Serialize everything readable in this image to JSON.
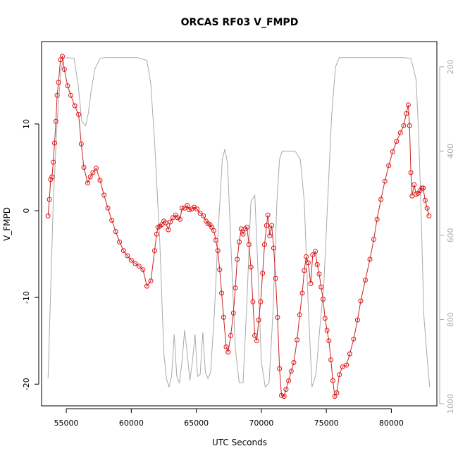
{
  "chart_data": {
    "type": "line",
    "title": "ORCAS RF03 V_FMPD",
    "xlabel": "UTC Seconds",
    "ylabel": "V_FMPD",
    "xlim": [
      53100,
      83500
    ],
    "ylim": [
      -22.5,
      19.5
    ],
    "x_ticks": [
      55000,
      60000,
      65000,
      70000,
      75000,
      80000
    ],
    "y_ticks": [
      -20,
      -10,
      0,
      10
    ],
    "right_axis": {
      "range": [
        1005,
        140
      ],
      "reversed": true,
      "ticks": [
        200,
        400,
        600,
        800,
        1000
      ],
      "color": "#aaaaaa"
    },
    "colors": {
      "series": "#e01010",
      "secondary": "#aaaaaa"
    },
    "series": [
      {
        "axis": "left",
        "points": [
          [
            53600,
            -0.6
          ],
          [
            53700,
            1.3
          ],
          [
            53800,
            3.6
          ],
          [
            53900,
            3.9
          ],
          [
            54000,
            5.6
          ],
          [
            54100,
            7.8
          ],
          [
            54200,
            10.3
          ],
          [
            54300,
            13.3
          ],
          [
            54400,
            14.8
          ],
          [
            54550,
            17.4
          ],
          [
            54700,
            17.8
          ],
          [
            54850,
            16.3
          ],
          [
            55100,
            14.4
          ],
          [
            55350,
            13.3
          ],
          [
            55650,
            12.1
          ],
          [
            55950,
            11.1
          ],
          [
            56150,
            7.7
          ],
          [
            56350,
            5.0
          ],
          [
            56650,
            3.2
          ],
          [
            56850,
            3.9
          ],
          [
            57050,
            4.4
          ],
          [
            57300,
            4.9
          ],
          [
            57600,
            3.5
          ],
          [
            57900,
            1.8
          ],
          [
            58200,
            0.3
          ],
          [
            58500,
            -1.1
          ],
          [
            58800,
            -2.4
          ],
          [
            59100,
            -3.6
          ],
          [
            59400,
            -4.6
          ],
          [
            59700,
            -5.2
          ],
          [
            60000,
            -5.7
          ],
          [
            60300,
            -6.1
          ],
          [
            60600,
            -6.4
          ],
          [
            60900,
            -6.8
          ],
          [
            61200,
            -8.7
          ],
          [
            61500,
            -8.1
          ],
          [
            61800,
            -4.6
          ],
          [
            61950,
            -2.7
          ],
          [
            62050,
            -1.9
          ],
          [
            62200,
            -1.8
          ],
          [
            62350,
            -1.6
          ],
          [
            62500,
            -1.2
          ],
          [
            62650,
            -1.4
          ],
          [
            62850,
            -2.2
          ],
          [
            63000,
            -1.3
          ],
          [
            63200,
            -0.8
          ],
          [
            63400,
            -0.5
          ],
          [
            63550,
            -0.8
          ],
          [
            63750,
            -1.0
          ],
          [
            63900,
            0.3
          ],
          [
            64100,
            0.3
          ],
          [
            64300,
            0.6
          ],
          [
            64450,
            0.1
          ],
          [
            64650,
            0.2
          ],
          [
            64850,
            0.4
          ],
          [
            65050,
            0.2
          ],
          [
            65300,
            -0.3
          ],
          [
            65550,
            -0.6
          ],
          [
            65750,
            -1.2
          ],
          [
            65900,
            -1.5
          ],
          [
            66050,
            -1.6
          ],
          [
            66200,
            -1.9
          ],
          [
            66350,
            -2.3
          ],
          [
            66500,
            -3.4
          ],
          [
            66650,
            -4.6
          ],
          [
            66800,
            -6.8
          ],
          [
            66950,
            -9.5
          ],
          [
            67100,
            -12.3
          ],
          [
            67300,
            -15.7
          ],
          [
            67450,
            -16.3
          ],
          [
            67650,
            -14.4
          ],
          [
            67850,
            -11.8
          ],
          [
            68000,
            -8.9
          ],
          [
            68150,
            -5.6
          ],
          [
            68300,
            -3.6
          ],
          [
            68450,
            -2.1
          ],
          [
            68600,
            -2.7
          ],
          [
            68750,
            -2.1
          ],
          [
            68900,
            -1.9
          ],
          [
            69050,
            -3.9
          ],
          [
            69200,
            -6.5
          ],
          [
            69350,
            -10.5
          ],
          [
            69500,
            -14.4
          ],
          [
            69650,
            -15.0
          ],
          [
            69800,
            -12.6
          ],
          [
            69950,
            -10.5
          ],
          [
            70100,
            -7.2
          ],
          [
            70250,
            -3.9
          ],
          [
            70400,
            -1.7
          ],
          [
            70500,
            -0.5
          ],
          [
            70650,
            -2.9
          ],
          [
            70800,
            -1.7
          ],
          [
            70950,
            -4.3
          ],
          [
            71100,
            -7.8
          ],
          [
            71250,
            -12.3
          ],
          [
            71400,
            -18.2
          ],
          [
            71550,
            -21.3
          ],
          [
            71750,
            -21.4
          ],
          [
            71900,
            -20.6
          ],
          [
            72100,
            -19.6
          ],
          [
            72300,
            -18.5
          ],
          [
            72500,
            -17.5
          ],
          [
            72750,
            -14.9
          ],
          [
            72950,
            -12.0
          ],
          [
            73150,
            -9.5
          ],
          [
            73300,
            -6.9
          ],
          [
            73450,
            -5.3
          ],
          [
            73600,
            -6.0
          ],
          [
            73800,
            -8.4
          ],
          [
            73950,
            -5.1
          ],
          [
            74150,
            -4.7
          ],
          [
            74300,
            -6.2
          ],
          [
            74450,
            -7.3
          ],
          [
            74600,
            -8.8
          ],
          [
            74750,
            -10.2
          ],
          [
            74900,
            -12.4
          ],
          [
            75050,
            -13.8
          ],
          [
            75200,
            -15.0
          ],
          [
            75350,
            -17.2
          ],
          [
            75500,
            -19.6
          ],
          [
            75650,
            -21.4
          ],
          [
            75800,
            -21.0
          ],
          [
            76000,
            -18.9
          ],
          [
            76250,
            -18.0
          ],
          [
            76550,
            -17.8
          ],
          [
            76800,
            -16.5
          ],
          [
            77100,
            -14.8
          ],
          [
            77400,
            -12.6
          ],
          [
            77650,
            -10.4
          ],
          [
            78000,
            -8.0
          ],
          [
            78350,
            -5.6
          ],
          [
            78650,
            -3.3
          ],
          [
            78900,
            -1.0
          ],
          [
            79200,
            1.3
          ],
          [
            79500,
            3.4
          ],
          [
            79800,
            5.2
          ],
          [
            80100,
            6.8
          ],
          [
            80400,
            8.0
          ],
          [
            80700,
            9.0
          ],
          [
            80950,
            9.8
          ],
          [
            81150,
            11.2
          ],
          [
            81300,
            12.2
          ],
          [
            81400,
            9.8
          ],
          [
            81500,
            4.4
          ],
          [
            81600,
            1.7
          ],
          [
            81750,
            3.0
          ],
          [
            81900,
            1.9
          ],
          [
            82050,
            2.0
          ],
          [
            82200,
            2.3
          ],
          [
            82350,
            2.6
          ],
          [
            82450,
            2.6
          ],
          [
            82600,
            1.2
          ],
          [
            82750,
            0.3
          ],
          [
            82900,
            -0.6
          ]
        ]
      },
      {
        "axis": "right",
        "points": [
          [
            53600,
            940
          ],
          [
            54000,
            520
          ],
          [
            54300,
            330
          ],
          [
            54600,
            205
          ],
          [
            54800,
            180
          ],
          [
            55000,
            178
          ],
          [
            55600,
            180
          ],
          [
            55900,
            240
          ],
          [
            56200,
            330
          ],
          [
            56500,
            340
          ],
          [
            56700,
            310
          ],
          [
            56900,
            260
          ],
          [
            57200,
            205
          ],
          [
            57600,
            180
          ],
          [
            58000,
            178
          ],
          [
            59500,
            178
          ],
          [
            60500,
            178
          ],
          [
            61200,
            185
          ],
          [
            61500,
            240
          ],
          [
            61800,
            380
          ],
          [
            62200,
            620
          ],
          [
            62500,
            880
          ],
          [
            62700,
            940
          ],
          [
            62900,
            960
          ],
          [
            63100,
            935
          ],
          [
            63300,
            835
          ],
          [
            63500,
            935
          ],
          [
            63700,
            950
          ],
          [
            63900,
            900
          ],
          [
            64100,
            825
          ],
          [
            64300,
            880
          ],
          [
            64500,
            945
          ],
          [
            64700,
            900
          ],
          [
            64900,
            835
          ],
          [
            65100,
            935
          ],
          [
            65300,
            930
          ],
          [
            65500,
            830
          ],
          [
            65700,
            925
          ],
          [
            65900,
            940
          ],
          [
            66100,
            925
          ],
          [
            66400,
            780
          ],
          [
            66700,
            580
          ],
          [
            67000,
            420
          ],
          [
            67200,
            395
          ],
          [
            67400,
            430
          ],
          [
            67700,
            650
          ],
          [
            68000,
            870
          ],
          [
            68300,
            950
          ],
          [
            68600,
            950
          ],
          [
            68900,
            750
          ],
          [
            69200,
            520
          ],
          [
            69500,
            505
          ],
          [
            69700,
            650
          ],
          [
            70000,
            900
          ],
          [
            70300,
            960
          ],
          [
            70600,
            950
          ],
          [
            70900,
            780
          ],
          [
            71200,
            520
          ],
          [
            71400,
            420
          ],
          [
            71600,
            400
          ],
          [
            72000,
            400
          ],
          [
            72600,
            400
          ],
          [
            73000,
            420
          ],
          [
            73300,
            520
          ],
          [
            73600,
            760
          ],
          [
            73900,
            960
          ],
          [
            74200,
            930
          ],
          [
            74500,
            820
          ],
          [
            74800,
            720
          ],
          [
            75100,
            520
          ],
          [
            75400,
            320
          ],
          [
            75700,
            200
          ],
          [
            76000,
            178
          ],
          [
            76500,
            178
          ],
          [
            80000,
            178
          ],
          [
            81000,
            178
          ],
          [
            81500,
            180
          ],
          [
            81900,
            230
          ],
          [
            82100,
            360
          ],
          [
            82300,
            560
          ],
          [
            82500,
            790
          ],
          [
            82800,
            910
          ],
          [
            82950,
            960
          ]
        ]
      }
    ]
  }
}
